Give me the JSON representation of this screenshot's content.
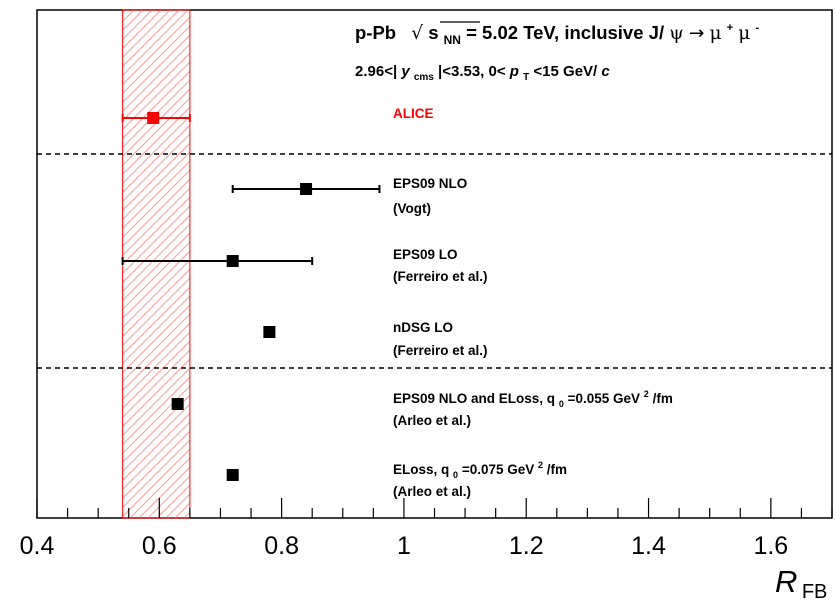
{
  "chart_data": {
    "type": "scatter",
    "orientation": "horizontal",
    "title_line1": {
      "system": "p-Pb",
      "sqrt_symbol": "√",
      "s_letter": "s",
      "s_subscript": "NN",
      "energy": "= 5.02 TeV, inclusive J/",
      "psi": "ψ",
      "arrow": "→",
      "mu": "μ",
      "plus": "+",
      "minus": "-"
    },
    "title_line2": {
      "range_prefix": "2.96<|",
      "y_letter": "y",
      "y_subscript": "cms",
      "range_mid": "|<3.53,  0<",
      "p_letter": "p",
      "p_subscript": "T",
      "range_suffix": "<15 GeV/",
      "c_letter": "c"
    },
    "xlabel": {
      "main": "R",
      "subscript": "FB"
    },
    "xlim": [
      0.4,
      1.7
    ],
    "xticks": [
      0.4,
      0.6,
      0.8,
      1,
      1.2,
      1.4,
      1.6
    ],
    "xtick_labels": [
      "0.4",
      "0.6",
      "0.8",
      "1",
      "1.2",
      "1.4",
      "1.6"
    ],
    "grid": false,
    "band": {
      "x_low": 0.54,
      "x_high": 0.65,
      "color": "#ff0000"
    },
    "series": [
      {
        "label": "ALICE",
        "lines": [
          "ALICE"
        ],
        "value": 0.59,
        "err_low": 0.05,
        "err_high": 0.06,
        "color": "#ff0000"
      },
      {
        "label": "EPS09 NLO (Vogt)",
        "lines": [
          "EPS09 NLO",
          "(Vogt)"
        ],
        "value": 0.84,
        "err_low": 0.12,
        "err_high": 0.12,
        "color": "#000000"
      },
      {
        "label": "EPS09 LO (Ferreiro et al.)",
        "lines": [
          "EPS09 LO",
          "(Ferreiro et al.)"
        ],
        "value": 0.72,
        "err_low": 0.18,
        "err_high": 0.13,
        "color": "#000000"
      },
      {
        "label": "nDSG LO (Ferreiro et al.)",
        "lines": [
          "nDSG LO",
          "(Ferreiro et al.)"
        ],
        "value": 0.78,
        "err_low": 0,
        "err_high": 0,
        "color": "#000000"
      },
      {
        "label": "EPS09 NLO and ELoss (Arleo et al.)",
        "lines": [
          "EPS09 NLO and ELoss, q",
          "0",
          "=0.055 GeV",
          "2",
          "/fm",
          "(Arleo et al.)"
        ],
        "value": 0.63,
        "err_low": 0,
        "err_high": 0,
        "color": "#000000"
      },
      {
        "label": "ELoss (Arleo et al.)",
        "lines": [
          "ELoss, q",
          "0",
          "=0.075 GeV",
          "2",
          "/fm",
          "(Arleo et al.)"
        ],
        "value": 0.72,
        "err_low": 0,
        "err_high": 0,
        "color": "#000000"
      }
    ]
  }
}
